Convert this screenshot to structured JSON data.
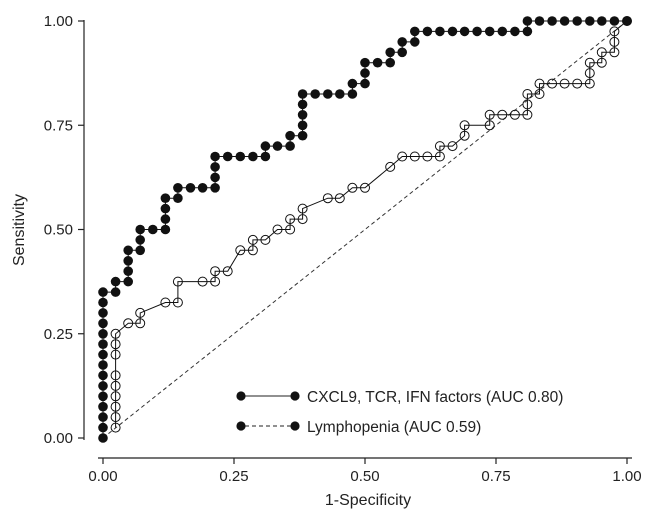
{
  "chart_data": {
    "type": "line",
    "title": "",
    "xlabel": "1-Specificity",
    "ylabel": "Sensitivity",
    "xlim": [
      0,
      1
    ],
    "ylim": [
      0,
      1
    ],
    "x_ticks": [
      {
        "value": 0,
        "label": "0.00"
      },
      {
        "value": 0.25,
        "label": "0.25"
      },
      {
        "value": 0.5,
        "label": "0.50"
      },
      {
        "value": 0.75,
        "label": "0.75"
      },
      {
        "value": 1,
        "label": "1.00"
      }
    ],
    "y_ticks": [
      {
        "value": 0,
        "label": "0.00"
      },
      {
        "value": 0.25,
        "label": "0.25"
      },
      {
        "value": 0.5,
        "label": "0.50"
      },
      {
        "value": 0.75,
        "label": "0.75"
      },
      {
        "value": 1,
        "label": "1.00"
      }
    ],
    "grid": false,
    "legend_position": "bottom-right",
    "reference_line": {
      "x": [
        0,
        1
      ],
      "y": [
        0,
        1
      ],
      "style": "dashed"
    },
    "series": [
      {
        "name": "CXCL9, TCR, IFN factors (AUC 0.80)",
        "marker": "filled-circle",
        "line": "solid",
        "color": "#111111",
        "points": [
          [
            0,
            0
          ],
          [
            0,
            0.025
          ],
          [
            0,
            0.05
          ],
          [
            0,
            0.075
          ],
          [
            0,
            0.1
          ],
          [
            0,
            0.125
          ],
          [
            0,
            0.15
          ],
          [
            0,
            0.175
          ],
          [
            0,
            0.2
          ],
          [
            0,
            0.225
          ],
          [
            0,
            0.25
          ],
          [
            0,
            0.275
          ],
          [
            0,
            0.3
          ],
          [
            0,
            0.325
          ],
          [
            0,
            0.35
          ],
          [
            0.024,
            0.35
          ],
          [
            0.024,
            0.375
          ],
          [
            0.048,
            0.375
          ],
          [
            0.048,
            0.4
          ],
          [
            0.048,
            0.425
          ],
          [
            0.048,
            0.45
          ],
          [
            0.071,
            0.45
          ],
          [
            0.071,
            0.475
          ],
          [
            0.071,
            0.5
          ],
          [
            0.095,
            0.5
          ],
          [
            0.119,
            0.5
          ],
          [
            0.119,
            0.525
          ],
          [
            0.119,
            0.55
          ],
          [
            0.119,
            0.575
          ],
          [
            0.143,
            0.575
          ],
          [
            0.143,
            0.6
          ],
          [
            0.167,
            0.6
          ],
          [
            0.19,
            0.6
          ],
          [
            0.214,
            0.6
          ],
          [
            0.214,
            0.625
          ],
          [
            0.214,
            0.65
          ],
          [
            0.214,
            0.675
          ],
          [
            0.238,
            0.675
          ],
          [
            0.262,
            0.675
          ],
          [
            0.286,
            0.675
          ],
          [
            0.31,
            0.675
          ],
          [
            0.31,
            0.7
          ],
          [
            0.333,
            0.7
          ],
          [
            0.357,
            0.7
          ],
          [
            0.357,
            0.725
          ],
          [
            0.381,
            0.725
          ],
          [
            0.381,
            0.75
          ],
          [
            0.381,
            0.775
          ],
          [
            0.381,
            0.8
          ],
          [
            0.381,
            0.825
          ],
          [
            0.405,
            0.825
          ],
          [
            0.429,
            0.825
          ],
          [
            0.452,
            0.825
          ],
          [
            0.476,
            0.825
          ],
          [
            0.476,
            0.85
          ],
          [
            0.5,
            0.85
          ],
          [
            0.5,
            0.875
          ],
          [
            0.5,
            0.9
          ],
          [
            0.524,
            0.9
          ],
          [
            0.548,
            0.9
          ],
          [
            0.548,
            0.925
          ],
          [
            0.571,
            0.925
          ],
          [
            0.571,
            0.95
          ],
          [
            0.595,
            0.95
          ],
          [
            0.595,
            0.975
          ],
          [
            0.619,
            0.975
          ],
          [
            0.643,
            0.975
          ],
          [
            0.667,
            0.975
          ],
          [
            0.69,
            0.975
          ],
          [
            0.714,
            0.975
          ],
          [
            0.738,
            0.975
          ],
          [
            0.762,
            0.975
          ],
          [
            0.786,
            0.975
          ],
          [
            0.81,
            0.975
          ],
          [
            0.81,
            1
          ],
          [
            0.833,
            1
          ],
          [
            0.857,
            1
          ],
          [
            0.881,
            1
          ],
          [
            0.905,
            1
          ],
          [
            0.929,
            1
          ],
          [
            0.952,
            1
          ],
          [
            0.976,
            1
          ],
          [
            1,
            1
          ]
        ]
      },
      {
        "name": "Lymphopenia (AUC 0.59)",
        "marker": "open-circle",
        "line": "solid",
        "color": "#111111",
        "points": [
          [
            0.024,
            0.025
          ],
          [
            0.024,
            0.05
          ],
          [
            0.024,
            0.075
          ],
          [
            0.024,
            0.1
          ],
          [
            0.024,
            0.125
          ],
          [
            0.024,
            0.15
          ],
          [
            0.024,
            0.2
          ],
          [
            0.024,
            0.225
          ],
          [
            0.024,
            0.25
          ],
          [
            0.048,
            0.275
          ],
          [
            0.071,
            0.275
          ],
          [
            0.071,
            0.3
          ],
          [
            0.119,
            0.325
          ],
          [
            0.143,
            0.325
          ],
          [
            0.143,
            0.375
          ],
          [
            0.19,
            0.375
          ],
          [
            0.214,
            0.375
          ],
          [
            0.214,
            0.4
          ],
          [
            0.238,
            0.4
          ],
          [
            0.262,
            0.45
          ],
          [
            0.286,
            0.45
          ],
          [
            0.286,
            0.475
          ],
          [
            0.31,
            0.475
          ],
          [
            0.333,
            0.5
          ],
          [
            0.357,
            0.5
          ],
          [
            0.357,
            0.525
          ],
          [
            0.381,
            0.525
          ],
          [
            0.381,
            0.55
          ],
          [
            0.429,
            0.575
          ],
          [
            0.452,
            0.575
          ],
          [
            0.476,
            0.6
          ],
          [
            0.5,
            0.6
          ],
          [
            0.548,
            0.65
          ],
          [
            0.571,
            0.675
          ],
          [
            0.595,
            0.675
          ],
          [
            0.619,
            0.675
          ],
          [
            0.643,
            0.675
          ],
          [
            0.643,
            0.7
          ],
          [
            0.667,
            0.7
          ],
          [
            0.69,
            0.725
          ],
          [
            0.69,
            0.75
          ],
          [
            0.738,
            0.75
          ],
          [
            0.738,
            0.775
          ],
          [
            0.762,
            0.775
          ],
          [
            0.786,
            0.775
          ],
          [
            0.81,
            0.775
          ],
          [
            0.81,
            0.8
          ],
          [
            0.81,
            0.825
          ],
          [
            0.833,
            0.825
          ],
          [
            0.833,
            0.85
          ],
          [
            0.857,
            0.85
          ],
          [
            0.881,
            0.85
          ],
          [
            0.905,
            0.85
          ],
          [
            0.929,
            0.85
          ],
          [
            0.929,
            0.875
          ],
          [
            0.929,
            0.9
          ],
          [
            0.952,
            0.9
          ],
          [
            0.952,
            0.925
          ],
          [
            0.976,
            0.925
          ],
          [
            0.976,
            0.95
          ],
          [
            0.976,
            0.975
          ],
          [
            1,
            1
          ]
        ]
      }
    ]
  }
}
